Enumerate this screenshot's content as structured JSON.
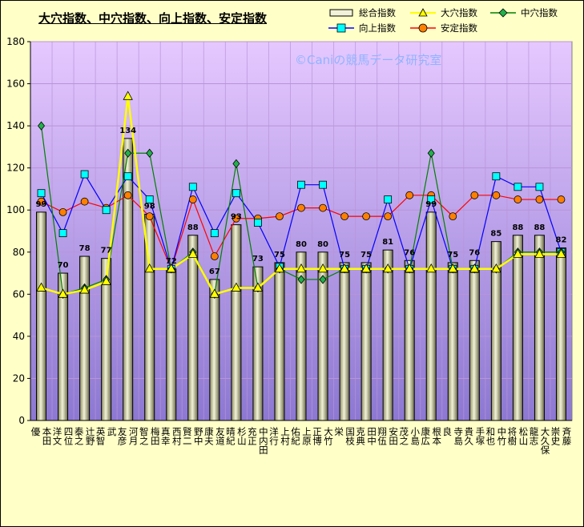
{
  "colors": {
    "plot_top": "#e6c8ff",
    "plot_bottom": "#8c78d2",
    "bar": "#f2f2d8",
    "ana": "#ffff00",
    "chuana": "#008000",
    "chuana_marker": "#22b14c",
    "kojo": "#0000ff",
    "kojo_marker": "#00ffff",
    "antei": "#ff0000",
    "antei_marker": "#ff8000",
    "grid": "#b894d8",
    "watermark": "#8fb4ff"
  },
  "chart_data": {
    "type": "bar",
    "title": "大穴指数、中穴指数、向上指数、安定指数",
    "watermark": "©Caniの競馬データ研究室",
    "ylim": [
      0,
      180
    ],
    "yticks": [
      0,
      20,
      40,
      60,
      80,
      100,
      120,
      140,
      160,
      180
    ],
    "grid": true,
    "legend_position": "top-right",
    "categories": [
      "本田 優",
      "四位 洋文",
      "辻野 泰之",
      "武 英智",
      "河月 友彦",
      "梅田 智之",
      "西村 真幸",
      "野中 賢二",
      "友道 康夫",
      "杉山 晴紀",
      "中内田 充正",
      "上村 洋行",
      "上原 佑紀",
      "大竹 正博",
      "国枝 栄",
      "田中 克典",
      "安田 翔伍",
      "小島 茂之",
      "根本 康広",
      "寺島 良",
      "手塚 貴久",
      "中竹 和也",
      "松山 将樹",
      "大久保 龍志",
      "斉藤 崇史"
    ],
    "series": [
      {
        "name": "総合指数",
        "type": "bar",
        "values": [
          99,
          70,
          78,
          77,
          134,
          98,
          72,
          88,
          67,
          93,
          73,
          75,
          80,
          80,
          75,
          75,
          81,
          76,
          99,
          75,
          76,
          85,
          88,
          88,
          82
        ],
        "labels": [
          "99",
          "70",
          "78",
          "77",
          "134",
          "98",
          "72",
          "88",
          "67",
          "93",
          "73",
          "75",
          "80",
          "80",
          "75",
          "75",
          "81",
          "76",
          "99",
          "75",
          "76",
          "85",
          "88",
          "88",
          "82"
        ]
      },
      {
        "name": "大穴指数",
        "type": "line",
        "values": [
          63,
          60,
          62,
          66,
          154,
          72,
          72,
          79,
          60,
          63,
          63,
          72,
          72,
          72,
          72,
          72,
          72,
          72,
          72,
          72,
          72,
          72,
          79,
          79,
          79
        ]
      },
      {
        "name": "中穴指数",
        "type": "line",
        "values": [
          140,
          60,
          63,
          67,
          127,
          127,
          72,
          80,
          60,
          122,
          63,
          72,
          67,
          67,
          72,
          72,
          72,
          72,
          127,
          72,
          72,
          72,
          80,
          80,
          80
        ]
      },
      {
        "name": "向上指数",
        "type": "line",
        "values": [
          108,
          89,
          117,
          100,
          116,
          105,
          72,
          111,
          89,
          108,
          94,
          73,
          112,
          112,
          72,
          72,
          105,
          72,
          105,
          72,
          72,
          116,
          111,
          111,
          80
        ]
      },
      {
        "name": "安定指数",
        "type": "line",
        "values": [
          104,
          99,
          104,
          101,
          107,
          97,
          72,
          105,
          78,
          96,
          96,
          97,
          101,
          101,
          97,
          97,
          97,
          107,
          107,
          97,
          107,
          107,
          105,
          105,
          105
        ]
      }
    ]
  }
}
